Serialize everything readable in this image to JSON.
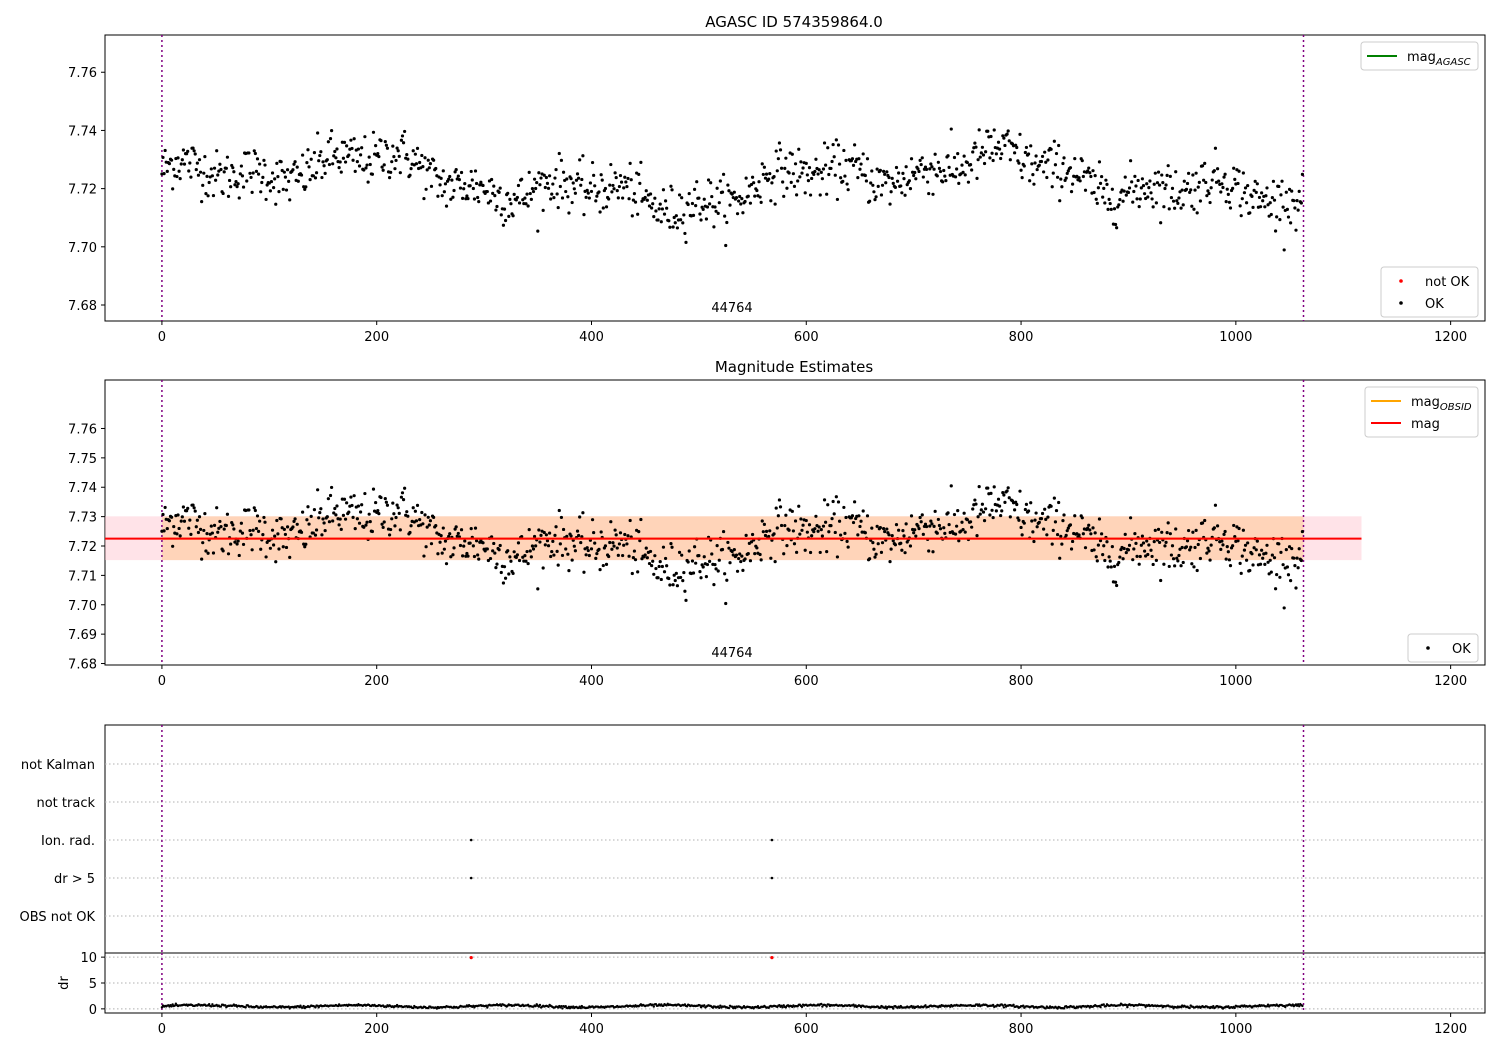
{
  "chart_data": [
    {
      "type": "scatter",
      "title": "AGASC ID 574359864.0",
      "xlabel": "",
      "ylabel": "",
      "xlim": [
        -53,
        1232
      ],
      "ylim": [
        7.6745,
        7.7728
      ],
      "xticks": [
        0,
        200,
        400,
        600,
        800,
        1000,
        1200
      ],
      "yticks": [
        7.68,
        7.7,
        7.72,
        7.74,
        7.76
      ],
      "ytick_decimals": 2,
      "obsid_label": "44764",
      "obsid_label_x": 531,
      "vlines": [
        0,
        1063
      ],
      "x_range": [
        0,
        1063
      ],
      "y_mean": 7.7225,
      "y_spread": 0.0095,
      "n_points": 1063,
      "series": [
        {
          "name": "OK",
          "color": "#000000"
        },
        {
          "name": "not OK",
          "color": "#ff0000"
        }
      ],
      "legends": [
        {
          "position": "upper-right",
          "entries": [
            {
              "label": "mag",
              "sub": "AGASC",
              "kind": "line",
              "color": "#008000"
            }
          ]
        },
        {
          "position": "lower-right",
          "entries": [
            {
              "label": "not OK",
              "kind": "marker",
              "color": "#ff0000"
            },
            {
              "label": "OK",
              "kind": "marker",
              "color": "#000000"
            }
          ]
        }
      ],
      "grid": false
    },
    {
      "type": "scatter",
      "title": "Magnitude Estimates",
      "xlabel": "",
      "ylabel": "",
      "xlim": [
        -53,
        1232
      ],
      "ylim": [
        7.6795,
        7.7765
      ],
      "xticks": [
        0,
        200,
        400,
        600,
        800,
        1000,
        1200
      ],
      "yticks": [
        7.68,
        7.69,
        7.7,
        7.71,
        7.72,
        7.73,
        7.74,
        7.75,
        7.76
      ],
      "ytick_decimals": 2,
      "obsid_label": "44764",
      "obsid_label_x": 531,
      "vlines": [
        0,
        1063
      ],
      "mag": {
        "value": 7.7225,
        "x_range": [
          -53,
          1117
        ],
        "color": "#ff0000"
      },
      "mag_band": {
        "range": [
          7.7152,
          7.7301
        ],
        "x_range": [
          -53,
          1117
        ],
        "color": "#ffc0cb"
      },
      "mag_obsid": {
        "value": 7.7225,
        "x_range": [
          0,
          1063
        ],
        "color": "#ffa500"
      },
      "mag_obsid_band": {
        "range": [
          7.7152,
          7.7301
        ],
        "x_range": [
          0,
          1063
        ],
        "color": "#ffc080"
      },
      "series": [
        {
          "name": "OK",
          "color": "#000000"
        }
      ],
      "legends": [
        {
          "position": "upper-right",
          "entries": [
            {
              "label": "mag",
              "sub": "OBSID",
              "kind": "line",
              "color": "#ffa500"
            },
            {
              "label": "mag",
              "kind": "line",
              "color": "#ff0000"
            }
          ]
        },
        {
          "position": "lower-right",
          "entries": [
            {
              "label": "OK",
              "kind": "marker",
              "color": "#000000"
            }
          ]
        }
      ],
      "grid": false
    },
    {
      "type": "scatter",
      "title": "",
      "xlabel": "",
      "ylabel": "",
      "xlim": [
        -53,
        1232
      ],
      "categories": [
        "OBS not OK",
        "dr > 5",
        "Ion. rad.",
        "not track",
        "not Kalman"
      ],
      "vlines": [
        0,
        1063
      ],
      "flag_points": [
        {
          "category": "dr > 5",
          "x": 288
        },
        {
          "category": "dr > 5",
          "x": 568
        },
        {
          "category": "Ion. rad.",
          "x": 288
        },
        {
          "category": "Ion. rad.",
          "x": 568
        }
      ],
      "grid": true
    },
    {
      "type": "scatter",
      "title": "",
      "xlabel": "",
      "ylabel": "dr",
      "xlim": [
        -53,
        1232
      ],
      "ylim": [
        -0.8,
        10.8
      ],
      "xticks": [
        0,
        200,
        400,
        600,
        800,
        1000,
        1200
      ],
      "yticks": [
        0,
        5,
        10
      ],
      "ytick_decimals": 0,
      "vlines": [
        0,
        1063
      ],
      "dr_mean": 0.5,
      "dr_spread": 0.3,
      "outliers": [
        {
          "x": 288,
          "y": 9.9,
          "color": "#ff0000"
        },
        {
          "x": 568,
          "y": 9.9,
          "color": "#ff0000"
        }
      ],
      "grid": true
    }
  ]
}
